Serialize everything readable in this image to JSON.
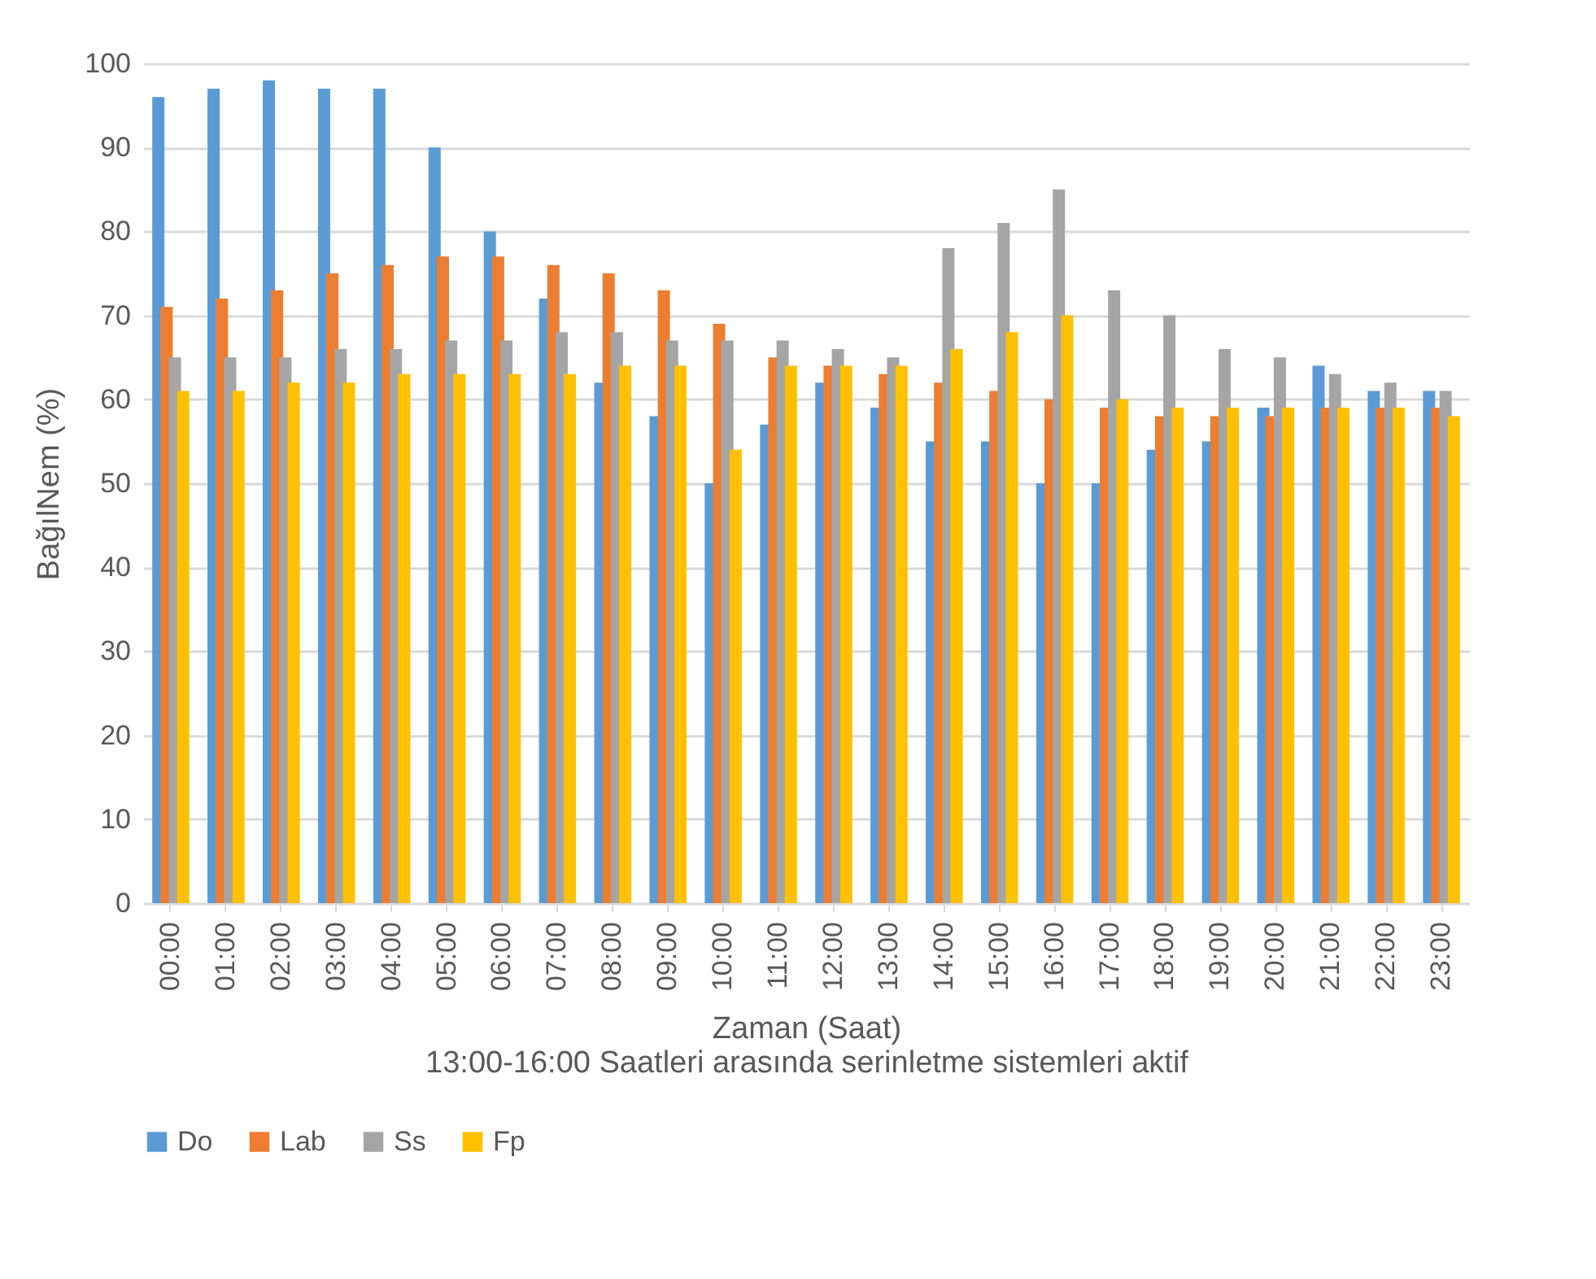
{
  "chart_data": {
    "type": "bar",
    "xlabel": "Zaman (Saat)",
    "ylabel": "BağılNem (%)",
    "annotations": [
      "13:00-16:00 Saatleri arasında serinletme sistemleri aktif"
    ],
    "categories": [
      "00:00",
      "01:00",
      "02:00",
      "03:00",
      "04:00",
      "05:00",
      "06:00",
      "07:00",
      "08:00",
      "09:00",
      "10:00",
      "11:00",
      "12:00",
      "13:00",
      "14:00",
      "15:00",
      "16:00",
      "17:00",
      "18:00",
      "19:00",
      "20:00",
      "21:00",
      "22:00",
      "23:00"
    ],
    "series": [
      {
        "name": "Do",
        "color": "#5b9bd5",
        "values": [
          96,
          97,
          98,
          97,
          97,
          90,
          80,
          72,
          62,
          58,
          50,
          57,
          62,
          59,
          55,
          55,
          50,
          50,
          54,
          55,
          59,
          64,
          61,
          61
        ]
      },
      {
        "name": "Lab",
        "color": "#ed7d31",
        "values": [
          71,
          72,
          73,
          75,
          76,
          77,
          77,
          76,
          75,
          73,
          69,
          65,
          64,
          63,
          62,
          61,
          60,
          59,
          58,
          58,
          58,
          59,
          59,
          59
        ]
      },
      {
        "name": "Ss",
        "color": "#a5a5a5",
        "values": [
          65,
          65,
          65,
          66,
          66,
          67,
          67,
          68,
          68,
          67,
          67,
          67,
          66,
          65,
          78,
          81,
          85,
          73,
          70,
          66,
          65,
          63,
          62,
          61
        ]
      },
      {
        "name": "Fp",
        "color": "#ffc000",
        "values": [
          61,
          61,
          62,
          62,
          63,
          63,
          63,
          63,
          64,
          64,
          54,
          64,
          64,
          64,
          66,
          68,
          70,
          60,
          59,
          59,
          59,
          59,
          59,
          58
        ]
      }
    ],
    "ylim": [
      0,
      100
    ],
    "yticks": [
      0,
      10,
      20,
      30,
      40,
      50,
      60,
      70,
      80,
      90,
      100
    ],
    "grid": "y",
    "legend": "bottom"
  }
}
